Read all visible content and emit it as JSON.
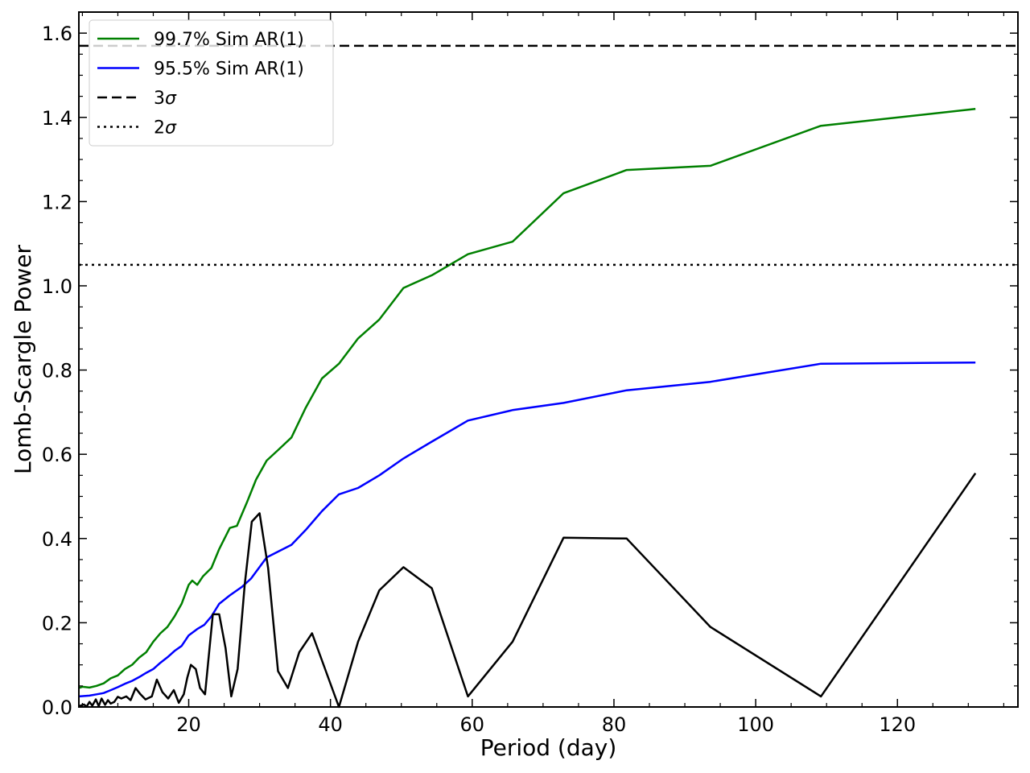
{
  "chart_data": {
    "type": "line",
    "xlabel": "Period (day)",
    "ylabel": "Lomb-Scargle Power",
    "xlim": [
      4.5,
      137
    ],
    "ylim": [
      0,
      1.65
    ],
    "xticks": [
      20,
      40,
      60,
      80,
      100,
      120
    ],
    "yticks": [
      0.0,
      0.2,
      0.4,
      0.6,
      0.8,
      1.0,
      1.2,
      1.4,
      1.6
    ],
    "xtick_labels": [
      "20",
      "40",
      "60",
      "80",
      "100",
      "120"
    ],
    "ytick_labels": [
      "0.0",
      "0.2",
      "0.4",
      "0.6",
      "0.8",
      "1.0",
      "1.2",
      "1.4",
      "1.6"
    ],
    "grid": false,
    "legend_position": "top-left",
    "series": [
      {
        "name": "99.7% Sim AR(1)",
        "color": "#008000",
        "style": "solid",
        "points": [
          [
            4.5,
            0.045
          ],
          [
            5,
            0.048
          ],
          [
            6,
            0.046
          ],
          [
            7,
            0.05
          ],
          [
            8,
            0.056
          ],
          [
            9,
            0.068
          ],
          [
            10,
            0.075
          ],
          [
            11,
            0.09
          ],
          [
            12,
            0.1
          ],
          [
            13,
            0.117
          ],
          [
            14,
            0.13
          ],
          [
            15,
            0.155
          ],
          [
            16,
            0.175
          ],
          [
            17,
            0.19
          ],
          [
            18,
            0.215
          ],
          [
            19,
            0.245
          ],
          [
            20,
            0.29
          ],
          [
            20.5,
            0.3
          ],
          [
            21.2,
            0.29
          ],
          [
            22,
            0.31
          ],
          [
            23.2,
            0.33
          ],
          [
            24.3,
            0.375
          ],
          [
            25.8,
            0.425
          ],
          [
            26.8,
            0.43
          ],
          [
            28.2,
            0.485
          ],
          [
            29.5,
            0.54
          ],
          [
            31,
            0.585
          ],
          [
            32.6,
            0.61
          ],
          [
            34.5,
            0.64
          ],
          [
            36.5,
            0.71
          ],
          [
            38.8,
            0.78
          ],
          [
            41.2,
            0.815
          ],
          [
            43.9,
            0.875
          ],
          [
            46.9,
            0.92
          ],
          [
            50.3,
            0.995
          ],
          [
            54.3,
            1.025
          ],
          [
            59.4,
            1.075
          ],
          [
            65.7,
            1.105
          ],
          [
            72.9,
            1.22
          ],
          [
            81.8,
            1.275
          ],
          [
            93.6,
            1.285
          ],
          [
            109.2,
            1.38
          ],
          [
            131,
            1.42
          ]
        ]
      },
      {
        "name": "95.5% Sim AR(1)",
        "color": "#0000ff",
        "style": "solid",
        "points": [
          [
            4.5,
            0.025
          ],
          [
            6,
            0.027
          ],
          [
            7,
            0.03
          ],
          [
            8,
            0.033
          ],
          [
            9,
            0.04
          ],
          [
            10,
            0.047
          ],
          [
            11,
            0.055
          ],
          [
            12,
            0.062
          ],
          [
            13,
            0.071
          ],
          [
            14,
            0.081
          ],
          [
            15,
            0.09
          ],
          [
            16,
            0.105
          ],
          [
            17,
            0.118
          ],
          [
            18,
            0.133
          ],
          [
            19,
            0.145
          ],
          [
            20,
            0.17
          ],
          [
            21.2,
            0.185
          ],
          [
            22.2,
            0.195
          ],
          [
            23.2,
            0.215
          ],
          [
            24.3,
            0.245
          ],
          [
            25.8,
            0.265
          ],
          [
            27.5,
            0.285
          ],
          [
            28.8,
            0.305
          ],
          [
            31,
            0.355
          ],
          [
            34.5,
            0.385
          ],
          [
            36.5,
            0.42
          ],
          [
            38.8,
            0.465
          ],
          [
            41.2,
            0.505
          ],
          [
            43.9,
            0.52
          ],
          [
            46.9,
            0.55
          ],
          [
            50.3,
            0.59
          ],
          [
            54.3,
            0.63
          ],
          [
            59.4,
            0.68
          ],
          [
            65.7,
            0.705
          ],
          [
            72.9,
            0.722
          ],
          [
            81.8,
            0.752
          ],
          [
            93.6,
            0.772
          ],
          [
            109.2,
            0.815
          ],
          [
            131,
            0.818
          ]
        ]
      },
      {
        "name": "",
        "color": "#000000",
        "style": "solid",
        "points": [
          [
            4.5,
            0.002
          ],
          [
            5.2,
            0.006
          ],
          [
            5.6,
            0.001
          ],
          [
            6.0,
            0.012
          ],
          [
            6.4,
            0.003
          ],
          [
            6.9,
            0.018
          ],
          [
            7.3,
            0.002
          ],
          [
            7.7,
            0.02
          ],
          [
            8.2,
            0.005
          ],
          [
            8.6,
            0.016
          ],
          [
            9.0,
            0.008
          ],
          [
            9.5,
            0.012
          ],
          [
            10.0,
            0.024
          ],
          [
            10.5,
            0.02
          ],
          [
            11.2,
            0.025
          ],
          [
            11.8,
            0.016
          ],
          [
            12.5,
            0.045
          ],
          [
            13.2,
            0.03
          ],
          [
            13.9,
            0.018
          ],
          [
            14.8,
            0.025
          ],
          [
            15.5,
            0.065
          ],
          [
            16.3,
            0.035
          ],
          [
            17.1,
            0.02
          ],
          [
            17.9,
            0.04
          ],
          [
            18.6,
            0.01
          ],
          [
            19.3,
            0.03
          ],
          [
            19.8,
            0.07
          ],
          [
            20.3,
            0.1
          ],
          [
            21.0,
            0.09
          ],
          [
            21.6,
            0.045
          ],
          [
            22.3,
            0.03
          ],
          [
            23.4,
            0.22
          ],
          [
            24.3,
            0.22
          ],
          [
            25.2,
            0.14
          ],
          [
            26.0,
            0.025
          ],
          [
            26.9,
            0.09
          ],
          [
            27.9,
            0.29
          ],
          [
            28.9,
            0.44
          ],
          [
            30.0,
            0.46
          ],
          [
            31.2,
            0.33
          ],
          [
            32.6,
            0.085
          ],
          [
            34.0,
            0.045
          ],
          [
            35.6,
            0.13
          ],
          [
            37.4,
            0.175
          ],
          [
            41.2,
            0.0
          ],
          [
            43.9,
            0.155
          ],
          [
            46.9,
            0.277
          ],
          [
            50.3,
            0.332
          ],
          [
            54.3,
            0.282
          ],
          [
            59.4,
            0.025
          ],
          [
            65.7,
            0.155
          ],
          [
            72.9,
            0.402
          ],
          [
            81.8,
            0.4
          ],
          [
            93.6,
            0.19
          ],
          [
            109.2,
            0.025
          ],
          [
            131,
            0.555
          ]
        ]
      },
      {
        "name": "3σ",
        "color": "#000000",
        "style": "dashed",
        "hline": 1.57
      },
      {
        "name": "2σ",
        "color": "#000000",
        "style": "dotted",
        "hline": 1.05
      }
    ],
    "legend": [
      {
        "label": "99.7% Sim AR(1)",
        "color": "#008000",
        "style": "solid"
      },
      {
        "label": "95.5% Sim AR(1)",
        "color": "#0000ff",
        "style": "solid"
      },
      {
        "label_base": "3",
        "label_symbol": "σ",
        "color": "#000000",
        "style": "dashed"
      },
      {
        "label_base": "2",
        "label_symbol": "σ",
        "color": "#000000",
        "style": "dotted"
      }
    ]
  }
}
